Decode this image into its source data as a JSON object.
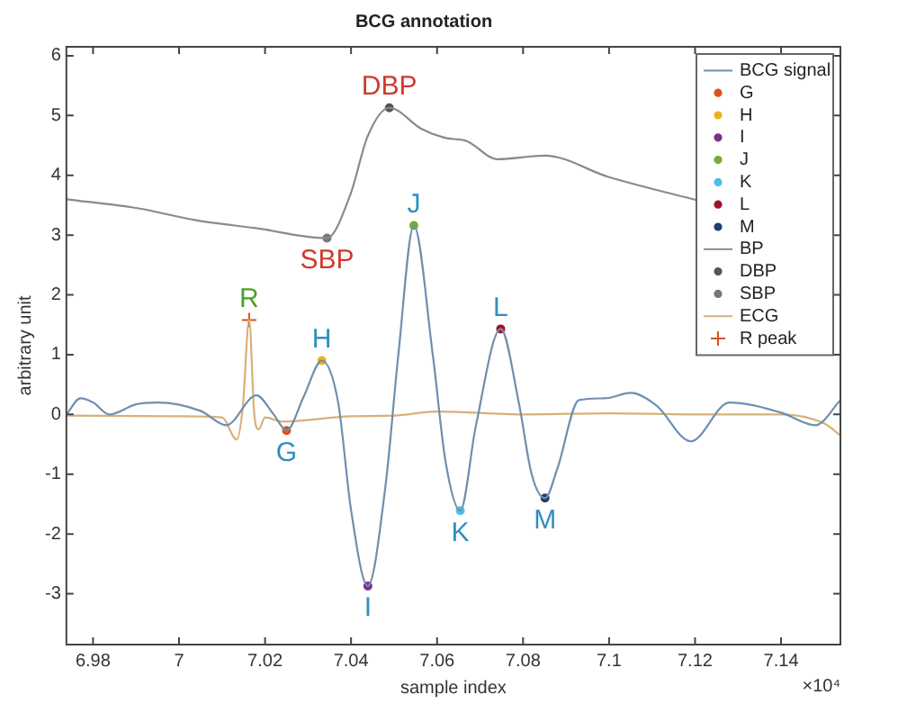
{
  "chart_data": {
    "type": "line",
    "title": "BCG annotation",
    "xlabel": "sample index",
    "ylabel": "arbitrary unit",
    "xlim": [
      6.9738,
      7.1538
    ],
    "xticks": [
      6.98,
      7,
      7.02,
      7.04,
      7.06,
      7.08,
      7.1,
      7.12,
      7.14
    ],
    "ylim": [
      -3.85,
      6.15
    ],
    "yticks": [
      -3,
      -2,
      -1,
      0,
      1,
      2,
      3,
      4,
      5,
      6
    ],
    "grid": false,
    "legend": "top right",
    "series": [
      {
        "name": "BCG signal",
        "marker": "none",
        "color": "#6f8fae",
        "x": [
          6.9738,
          6.9771,
          6.98,
          6.9838,
          6.99,
          6.995,
          7.005,
          7.011,
          7.018,
          7.022,
          7.025,
          7.029,
          7.0332,
          7.037,
          7.04,
          7.0439,
          7.048,
          7.051,
          7.0546,
          7.059,
          7.062,
          7.0654,
          7.069,
          7.0748,
          7.079,
          7.082,
          7.0851,
          7.088,
          7.093,
          7.099,
          7.105,
          7.111,
          7.119,
          7.128,
          7.14,
          7.148,
          7.1538
        ],
        "values": [
          0.0,
          0.27,
          0.2,
          0.0,
          0.17,
          0.2,
          0.06,
          -0.18,
          0.32,
          0.0,
          -0.27,
          0.3,
          0.9,
          0.2,
          -1.6,
          -2.87,
          -1.2,
          1.0,
          3.16,
          1.0,
          -0.8,
          -1.61,
          -0.2,
          1.43,
          0.2,
          -1.0,
          -1.4,
          -0.9,
          0.24,
          0.27,
          0.36,
          0.15,
          -0.45,
          0.2,
          0.03,
          -0.18,
          0.24
        ]
      },
      {
        "name": "G",
        "type": "scatter",
        "marker": "circle",
        "color": "#d95319",
        "x": [
          7.025
        ],
        "values": [
          -0.27
        ]
      },
      {
        "name": "H",
        "type": "scatter",
        "marker": "circle",
        "color": "#edb120",
        "x": [
          7.0332
        ],
        "values": [
          0.9
        ]
      },
      {
        "name": "I",
        "type": "scatter",
        "marker": "circle",
        "color": "#7e2f8e",
        "x": [
          7.0439
        ],
        "values": [
          -2.87
        ]
      },
      {
        "name": "J",
        "type": "scatter",
        "marker": "circle",
        "color": "#77ac30",
        "x": [
          7.0546
        ],
        "values": [
          3.16
        ]
      },
      {
        "name": "K",
        "type": "scatter",
        "marker": "circle",
        "color": "#4dbeee",
        "x": [
          7.0654
        ],
        "values": [
          -1.61
        ]
      },
      {
        "name": "L",
        "type": "scatter",
        "marker": "circle",
        "color": "#a2142f",
        "x": [
          7.0748
        ],
        "values": [
          1.43
        ]
      },
      {
        "name": "M",
        "type": "scatter",
        "marker": "circle",
        "color": "#1f3f6f",
        "x": [
          7.0851
        ],
        "values": [
          -1.4
        ]
      },
      {
        "name": "BP",
        "marker": "none",
        "color": "#8a8a8a",
        "x": [
          6.9738,
          6.9903,
          7.0039,
          7.0175,
          7.0344,
          7.0398,
          7.0439,
          7.0489,
          7.0563,
          7.0617,
          7.067,
          7.074,
          7.085,
          7.1,
          7.1206
        ],
        "values": [
          3.6,
          3.45,
          3.25,
          3.12,
          2.95,
          3.67,
          4.66,
          5.13,
          4.78,
          4.63,
          4.57,
          4.27,
          4.33,
          3.97,
          3.58
        ]
      },
      {
        "name": "DBP",
        "type": "scatter",
        "marker": "circle",
        "color": "#555555",
        "x": [
          7.0489
        ],
        "values": [
          5.13
        ]
      },
      {
        "name": "SBP",
        "type": "scatter",
        "marker": "circle",
        "color": "#777777",
        "x": [
          7.0344
        ],
        "values": [
          2.95
        ]
      },
      {
        "name": "ECG",
        "marker": "none",
        "color": "#d8b07a",
        "x": [
          6.9738,
          7.0,
          7.01,
          7.0134,
          7.0148,
          7.0163,
          7.0175,
          7.0185,
          7.02,
          7.024,
          7.04,
          7.05,
          7.06,
          7.08,
          7.1,
          7.12,
          7.14,
          7.15,
          7.1538
        ],
        "values": [
          -0.02,
          -0.03,
          -0.05,
          -0.42,
          0.1,
          1.58,
          0.0,
          -0.25,
          -0.05,
          -0.12,
          -0.03,
          -0.02,
          0.05,
          0.0,
          0.02,
          0.0,
          0.0,
          -0.15,
          -0.35
        ]
      },
      {
        "name": "R peak",
        "type": "scatter",
        "marker": "cross",
        "color": "#d95319",
        "x": [
          7.0163
        ],
        "values": [
          1.58
        ]
      }
    ],
    "annotations": [
      {
        "text": "G",
        "x": 7.025,
        "y": -0.27
      },
      {
        "text": "H",
        "x": 7.0332,
        "y": 0.9
      },
      {
        "text": "I",
        "x": 7.0439,
        "y": -2.87
      },
      {
        "text": "J",
        "x": 7.0546,
        "y": 3.16
      },
      {
        "text": "K",
        "x": 7.0654,
        "y": -1.61
      },
      {
        "text": "L",
        "x": 7.0748,
        "y": 1.43
      },
      {
        "text": "M",
        "x": 7.0851,
        "y": -1.4
      },
      {
        "text": "DBP",
        "x": 7.0489,
        "y": 5.13
      },
      {
        "text": "SBP",
        "x": 7.0344,
        "y": 2.95
      },
      {
        "text": "R",
        "x": 7.0163,
        "y": 1.58
      },
      "×10⁴"
    ]
  }
}
